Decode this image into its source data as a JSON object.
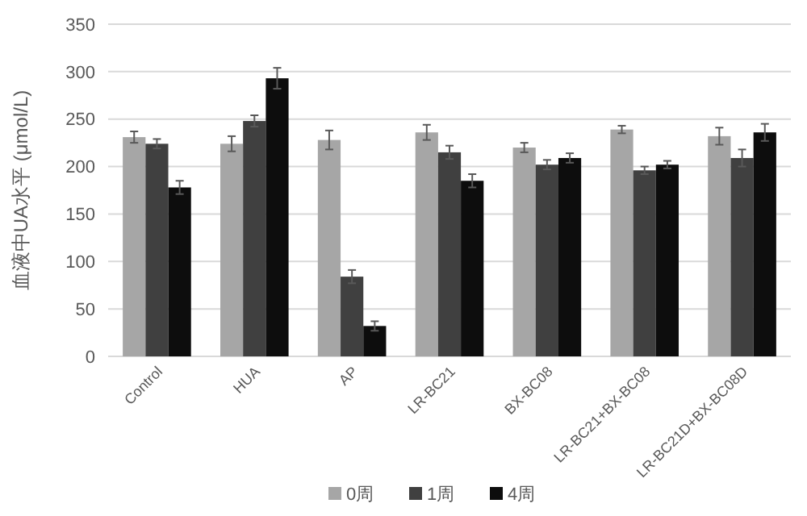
{
  "chart_data": {
    "type": "bar",
    "ylabel": "血液中UA水平 (μmol/L)",
    "categories": [
      "Control",
      "HUA",
      "AP",
      "LR-BC21",
      "BX-BC08",
      "LR-BC21+BX-BC08",
      "LR-BC21D+BX-BC08D"
    ],
    "series": [
      {
        "name": "0周",
        "color": "#a6a6a6",
        "values": [
          231,
          224,
          228,
          236,
          220,
          239,
          232
        ],
        "errors": [
          6,
          8,
          10,
          8,
          5,
          4,
          9
        ]
      },
      {
        "name": "1周",
        "color": "#404040",
        "values": [
          224,
          248,
          84,
          215,
          202,
          196,
          209
        ],
        "errors": [
          5,
          6,
          7,
          7,
          5,
          4,
          9
        ]
      },
      {
        "name": "4周",
        "color": "#0d0d0d",
        "values": [
          178,
          293,
          32,
          185,
          209,
          202,
          236
        ],
        "errors": [
          7,
          11,
          5,
          7,
          5,
          4,
          9
        ]
      }
    ],
    "ylim": [
      0,
      350
    ],
    "yticks": [
      0,
      50,
      100,
      150,
      200,
      250,
      300,
      350
    ],
    "grid": "y",
    "legend": "bottom"
  }
}
